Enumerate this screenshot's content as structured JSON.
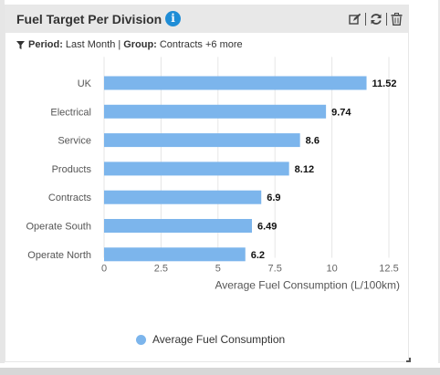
{
  "widget": {
    "title": "Fuel Target Per Division",
    "filter": {
      "period_label": "Period:",
      "period_value": "Last Month",
      "separator": "|",
      "group_label": "Group:",
      "group_value": "Contracts +6 more"
    },
    "icons": [
      "edit-icon",
      "refresh-icon",
      "delete-icon"
    ]
  },
  "chart_data": {
    "type": "bar",
    "orientation": "horizontal",
    "categories": [
      "UK",
      "Electrical",
      "Service",
      "Products",
      "Contracts",
      "Operate South",
      "Operate North"
    ],
    "series": [
      {
        "name": "Average Fuel Consumption",
        "values": [
          11.52,
          9.74,
          8.6,
          8.12,
          6.9,
          6.49,
          6.2
        ],
        "color": "#7cb5ec"
      }
    ],
    "data_labels": [
      "11.52",
      "9.74",
      "8.6",
      "8.12",
      "6.9",
      "6.49",
      "6.2"
    ],
    "xlabel": "Average Fuel Consumption (L/100km)",
    "xlim": [
      0,
      12.5
    ],
    "xticks": [
      "0",
      "2.5",
      "5",
      "7.5",
      "10",
      "12.5"
    ],
    "grid": true,
    "legend_position": "bottom"
  }
}
